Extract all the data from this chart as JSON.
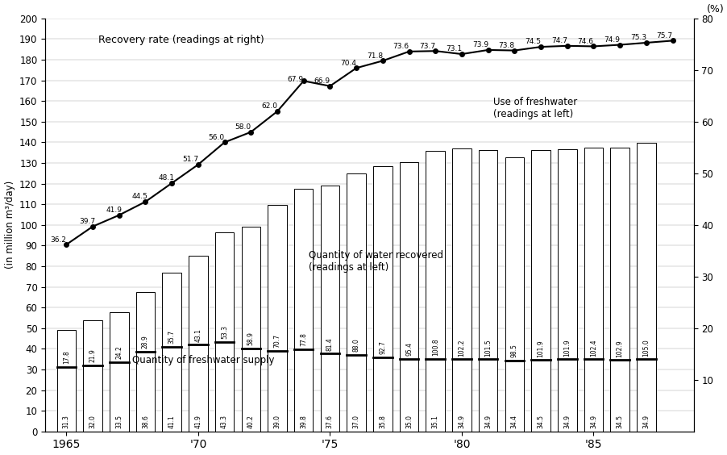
{
  "years": [
    1965,
    1966,
    1967,
    1968,
    1969,
    1970,
    1971,
    1972,
    1973,
    1974,
    1975,
    1976,
    1977,
    1978,
    1979,
    1980,
    1981,
    1982,
    1983,
    1984,
    1985,
    1986,
    1987
  ],
  "supply": [
    31.3,
    32.0,
    33.5,
    38.6,
    41.1,
    41.9,
    43.3,
    40.2,
    39.0,
    39.8,
    37.6,
    37.0,
    35.8,
    35.0,
    35.1,
    34.9,
    34.9,
    34.4,
    34.5,
    34.9,
    34.9,
    34.5,
    34.9
  ],
  "recovered": [
    17.8,
    21.9,
    24.2,
    28.9,
    35.7,
    43.1,
    53.3,
    58.9,
    70.7,
    77.8,
    81.4,
    88.0,
    92.7,
    95.4,
    100.8,
    102.2,
    101.5,
    98.5,
    101.9,
    101.9,
    102.4,
    102.9,
    105.0
  ],
  "rate_pct": [
    36.2,
    39.7,
    41.9,
    44.5,
    48.1,
    51.7,
    56.0,
    58.0,
    62.0,
    67.9,
    66.9,
    70.4,
    71.8,
    73.6,
    73.7,
    73.1,
    73.9,
    73.8,
    74.5,
    74.7,
    74.6,
    74.9,
    75.3,
    75.7
  ],
  "rate_years": [
    1965,
    1966,
    1967,
    1968,
    1969,
    1970,
    1971,
    1972,
    1973,
    1974,
    1975,
    1976,
    1977,
    1978,
    1979,
    1980,
    1981,
    1982,
    1983,
    1984,
    1985,
    1986,
    1987,
    1988
  ],
  "ylim_left": [
    0,
    200
  ],
  "ylim_right": [
    0,
    80
  ],
  "ylabel_left": "(in million m³/day)",
  "pct_label": "(%)"
}
